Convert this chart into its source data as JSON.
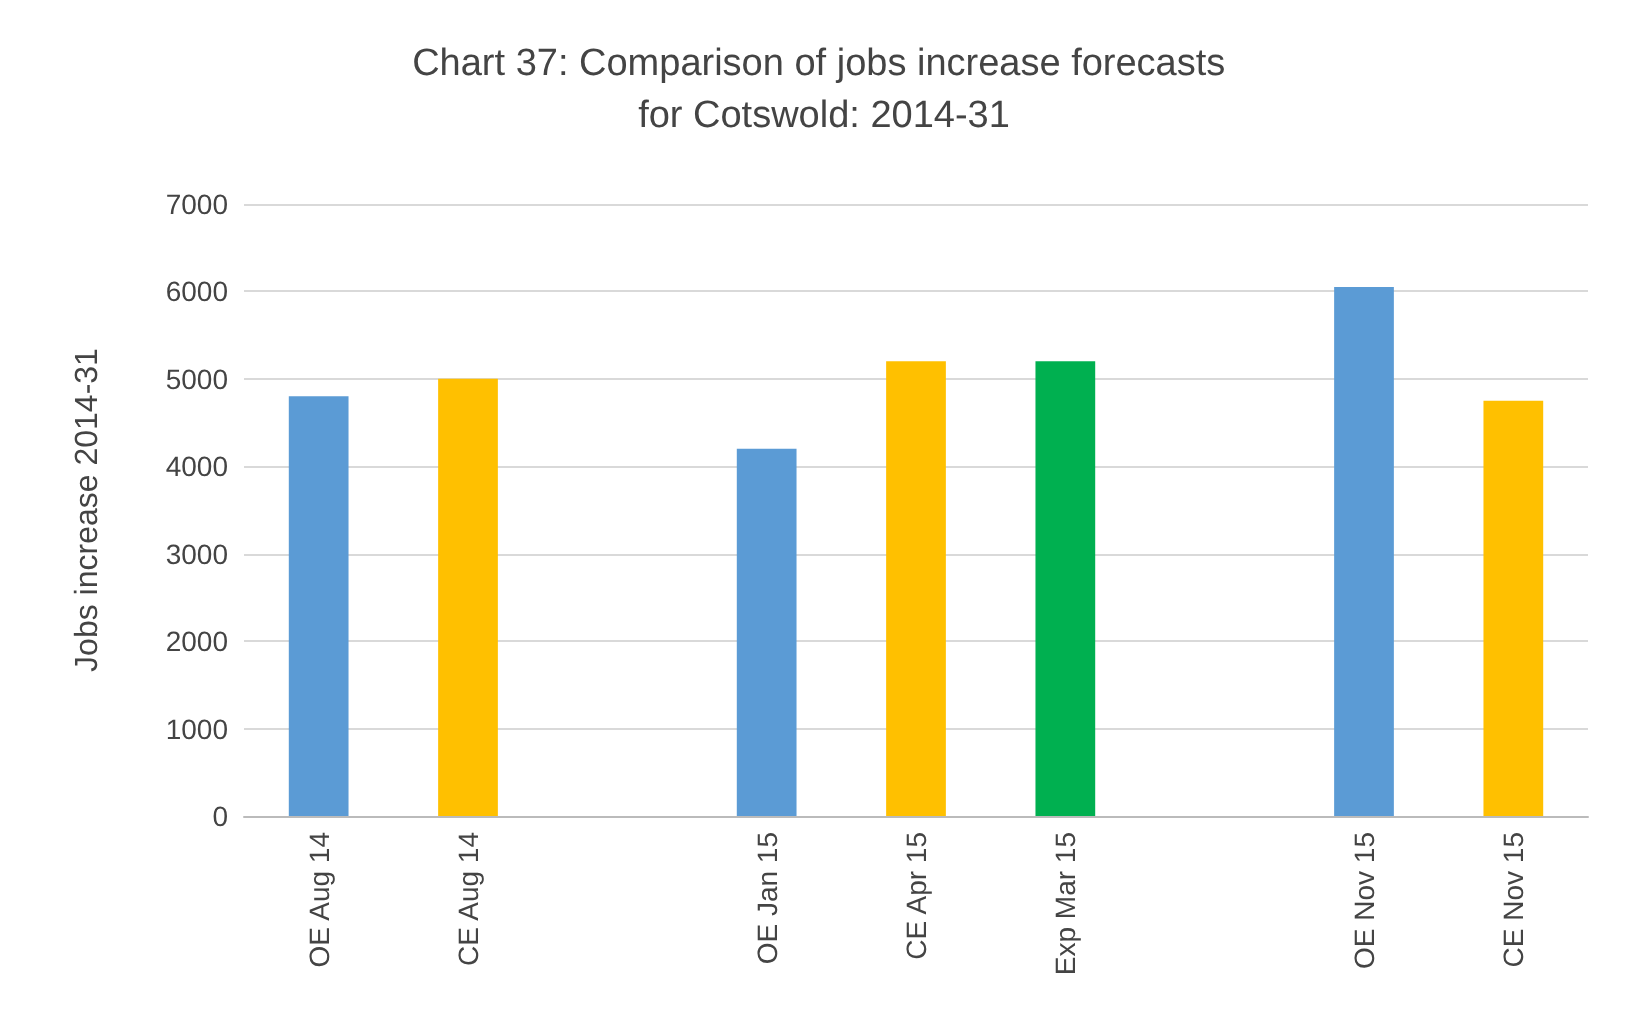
{
  "chart_data": {
    "type": "bar",
    "title": "Chart 37: Comparison of jobs increase forecasts for Cotswold: 2014-31",
    "ylabel": "Jobs increase 2014-31",
    "categories": [
      "OE Aug 14",
      "CE Aug 14",
      null,
      "OE Jan 15",
      "CE Apr 15",
      "Exp Mar 15",
      null,
      "OE Nov 15",
      "CE Nov 15"
    ],
    "values": [
      4800,
      5000,
      null,
      4200,
      5200,
      5200,
      null,
      6050,
      4750
    ],
    "colors": [
      "#5b9bd5",
      "#ffc000",
      null,
      "#5b9bd5",
      "#ffc000",
      "#00b050",
      null,
      "#5b9bd5",
      "#ffc000"
    ],
    "ylim": [
      0,
      7000
    ],
    "yticks": [
      0,
      1000,
      2000,
      3000,
      4000,
      5000,
      6000,
      7000
    ],
    "grid": "y"
  }
}
